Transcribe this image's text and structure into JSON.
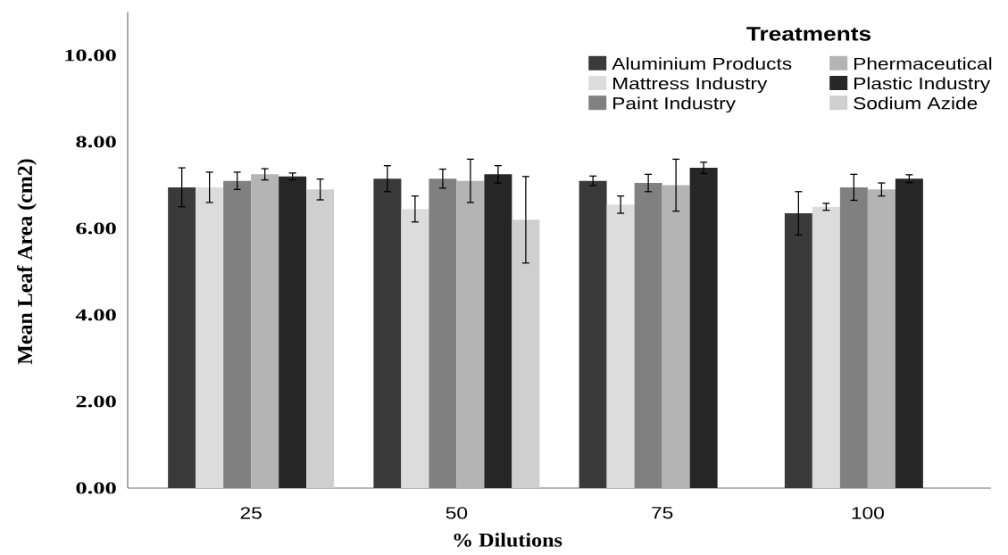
{
  "chart_data": {
    "type": "bar",
    "xlabel": "% Dilutions",
    "ylabel": "Mean Leaf Area (cm2)",
    "legend_title": "Treatments",
    "legend": "top right",
    "categories": [
      "25",
      "50",
      "75",
      "100"
    ],
    "series": [
      {
        "name": "Aluminium Products",
        "color": "#3a3a3a",
        "values": [
          6.95,
          7.15,
          7.1,
          6.35
        ],
        "errors": [
          0.45,
          0.3,
          0.11,
          0.5
        ]
      },
      {
        "name": "Mattress Industry",
        "color": "#dcdcdc",
        "values": [
          6.95,
          6.45,
          6.55,
          6.5
        ],
        "errors": [
          0.35,
          0.3,
          0.2,
          0.08
        ]
      },
      {
        "name": "Paint Industry",
        "color": "#808080",
        "values": [
          7.1,
          7.15,
          7.05,
          6.95
        ],
        "errors": [
          0.2,
          0.22,
          0.2,
          0.3
        ]
      },
      {
        "name": "Phermaceutical",
        "color": "#b4b4b4",
        "values": [
          7.25,
          7.1,
          7.0,
          6.9
        ],
        "errors": [
          0.13,
          0.5,
          0.6,
          0.15
        ]
      },
      {
        "name": "Plastic Industry",
        "color": "#262626",
        "values": [
          7.2,
          7.25,
          7.4,
          7.15
        ],
        "errors": [
          0.08,
          0.2,
          0.13,
          0.09
        ]
      },
      {
        "name": "Sodium Azide",
        "color": "#cfcfcf",
        "values": [
          6.9,
          6.2,
          null,
          null
        ],
        "errors": [
          0.24,
          1.0,
          null,
          null
        ]
      }
    ],
    "ylim": [
      0,
      11
    ],
    "yticks": [
      {
        "value": 0,
        "label": "0.00"
      },
      {
        "value": 2,
        "label": "2.00"
      },
      {
        "value": 4,
        "label": "4.00"
      },
      {
        "value": 6,
        "label": "6.00"
      },
      {
        "value": 8,
        "label": "8.00"
      },
      {
        "value": 10,
        "label": "10.00"
      }
    ]
  }
}
